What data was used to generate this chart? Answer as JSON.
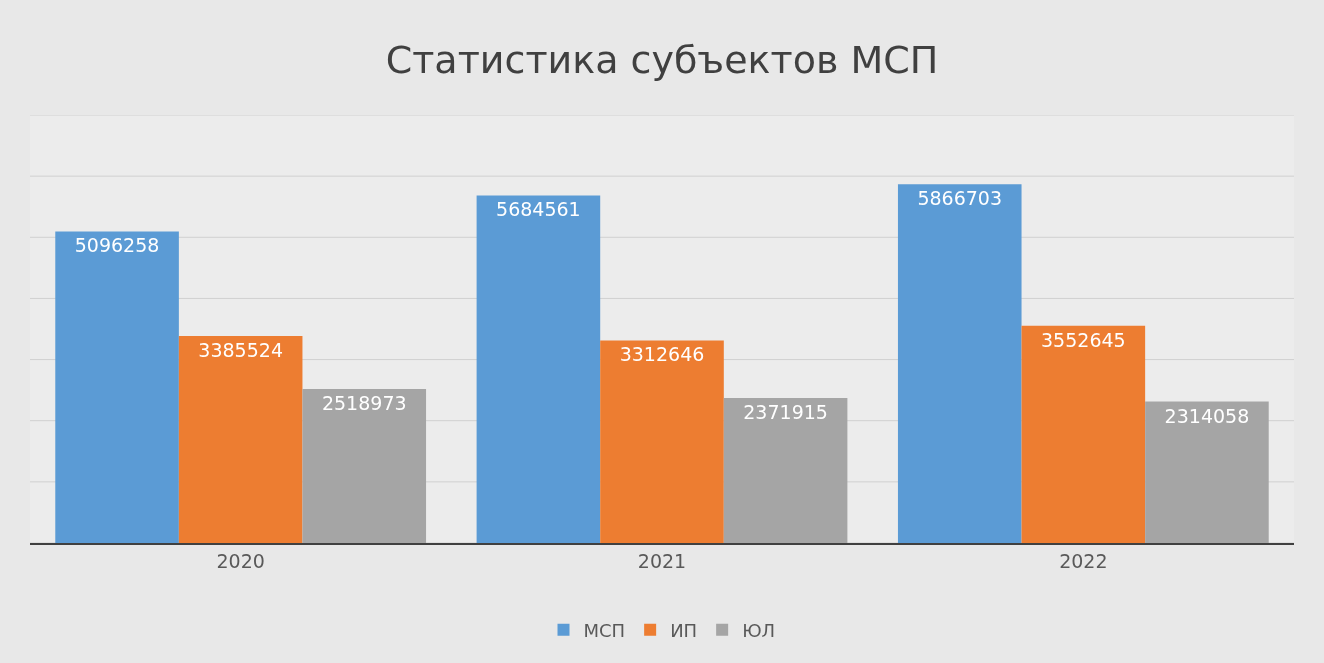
{
  "chart_data": {
    "type": "bar",
    "title": "Статистика субъектов МСП",
    "categories": [
      "2020",
      "2021",
      "2022"
    ],
    "series": [
      {
        "name": "МСП",
        "color": "#5b9bd5",
        "values": [
          5096258,
          5684561,
          5866703
        ]
      },
      {
        "name": "ИП",
        "color": "#ed7d31",
        "values": [
          3385524,
          3312646,
          3552645
        ]
      },
      {
        "name": "ЮЛ",
        "color": "#a5a5a5",
        "values": [
          2518973,
          2371915,
          2314058
        ]
      }
    ],
    "ylim": [
      0,
      7000000
    ],
    "yticks": [
      {
        "value": 0,
        "label": null
      },
      {
        "value": 1000000,
        "label": null
      },
      {
        "value": 2000000,
        "label": null
      },
      {
        "value": 3000000,
        "label": null
      },
      {
        "value": 4000000,
        "label": null
      },
      {
        "value": 5000000,
        "label": null
      },
      {
        "value": 6000000,
        "label": null
      },
      {
        "value": 7000000,
        "label": null
      }
    ],
    "tick_labels": "x",
    "grid": "y",
    "legend": "bottom",
    "data_labels": true
  }
}
